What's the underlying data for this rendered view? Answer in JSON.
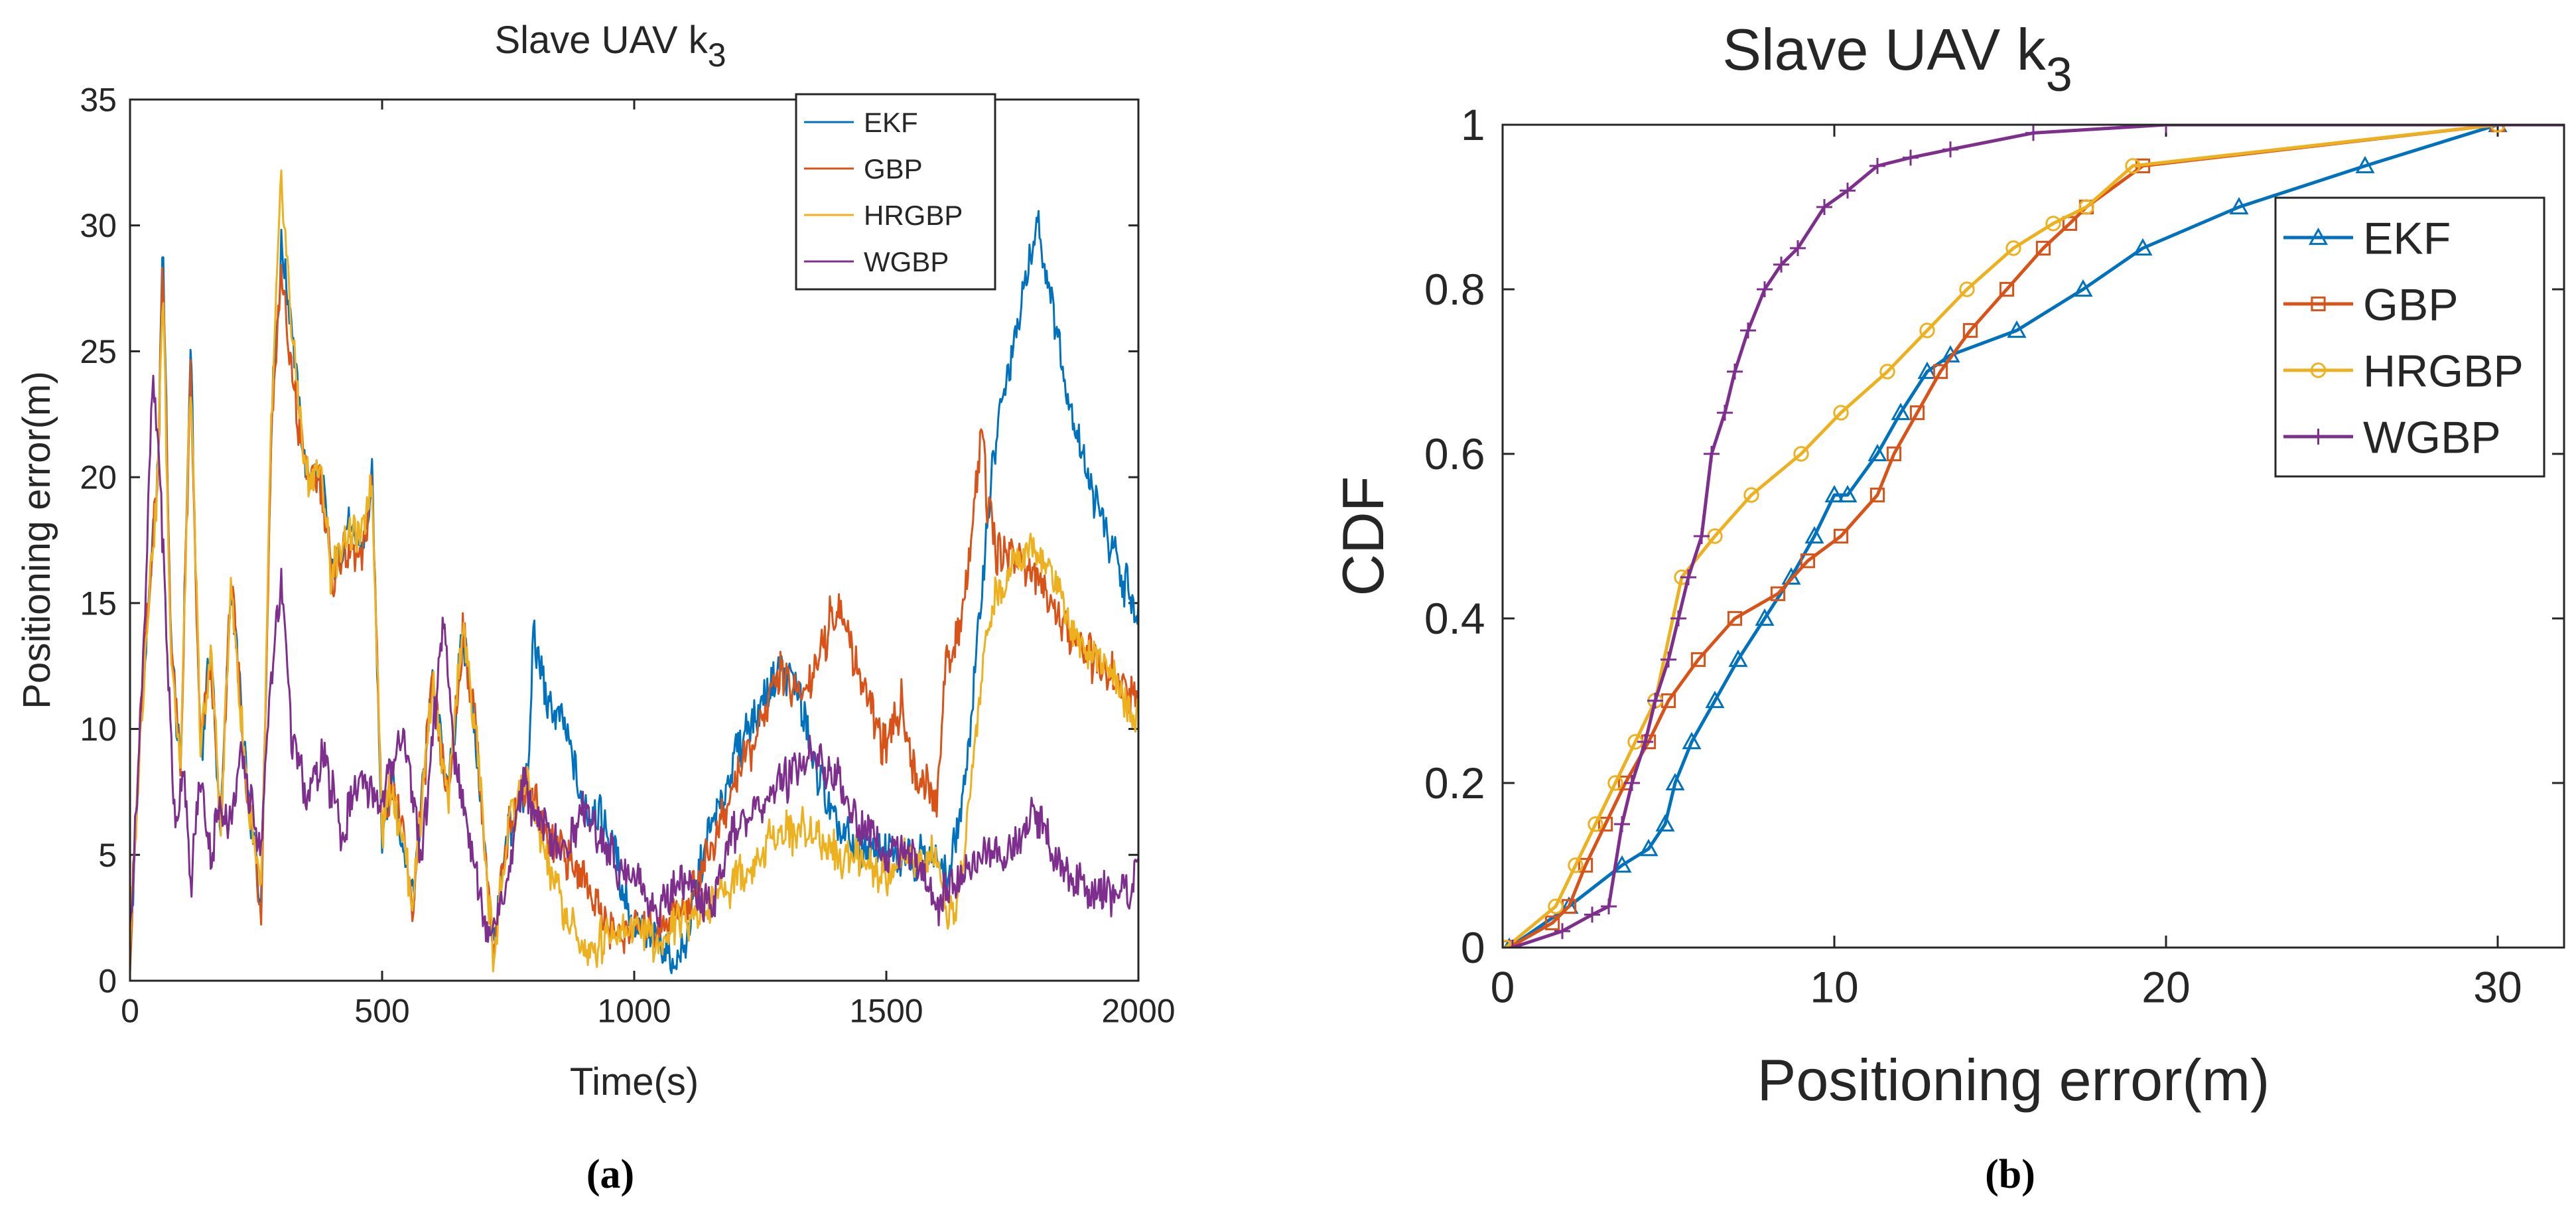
{
  "chart_data": [
    {
      "id": "a",
      "type": "line",
      "title": "Slave UAV k",
      "title_subscript": "3",
      "xlabel": "Time(s)",
      "ylabel": "Positioning error(m)",
      "xlim": [
        0,
        2000
      ],
      "ylim": [
        0,
        35
      ],
      "xticks": [
        0,
        500,
        1000,
        1500,
        2000
      ],
      "yticks": [
        0,
        5,
        10,
        15,
        20,
        25,
        30,
        35
      ],
      "grid": false,
      "legend_position": "top-right",
      "caption": "(a)",
      "series": [
        {
          "name": "EKF",
          "color": "#0072BD",
          "x": [
            0,
            20,
            40,
            55,
            65,
            80,
            100,
            120,
            140,
            160,
            180,
            200,
            230,
            260,
            280,
            300,
            320,
            350,
            380,
            400,
            430,
            460,
            480,
            500,
            520,
            560,
            600,
            630,
            660,
            690,
            720,
            750,
            790,
            800,
            830,
            860,
            900,
            950,
            1000,
            1050,
            1080,
            1100,
            1150,
            1200,
            1250,
            1290,
            1320,
            1350,
            1400,
            1450,
            1500,
            1550,
            1600,
            1620,
            1650,
            1680,
            1700,
            1720,
            1750,
            1780,
            1800,
            1830,
            1860,
            1900,
            1950,
            2000
          ],
          "y": [
            1,
            10,
            16,
            20,
            29.5,
            14,
            8,
            25,
            9,
            13,
            6,
            16,
            8,
            3,
            22,
            29,
            26,
            20,
            20,
            16,
            18,
            17,
            20,
            6,
            8,
            3,
            12,
            7,
            14,
            9,
            1,
            6,
            8,
            14,
            11,
            10,
            7,
            6,
            2,
            1.5,
            0.6,
            1.5,
            6,
            9,
            11,
            12.5,
            12,
            9,
            6,
            5,
            5,
            5,
            5,
            4,
            7,
            13,
            18,
            22,
            25,
            28,
            30,
            27,
            23,
            20,
            17,
            14.5
          ]
        },
        {
          "name": "GBP",
          "color": "#D95319",
          "x": [
            0,
            20,
            40,
            55,
            65,
            80,
            100,
            120,
            140,
            160,
            180,
            200,
            230,
            260,
            280,
            300,
            320,
            350,
            380,
            400,
            430,
            460,
            480,
            500,
            520,
            560,
            600,
            630,
            660,
            690,
            720,
            750,
            790,
            820,
            860,
            900,
            950,
            1000,
            1050,
            1100,
            1150,
            1200,
            1250,
            1290,
            1320,
            1350,
            1400,
            1420,
            1450,
            1500,
            1530,
            1560,
            1600,
            1620,
            1650,
            1680,
            1690,
            1700,
            1720,
            1750,
            1800,
            1850,
            1900,
            1950,
            2000
          ],
          "y": [
            1,
            10,
            16,
            20,
            29,
            14,
            8,
            24,
            9,
            13,
            6,
            16,
            8,
            3,
            22,
            28,
            24,
            20,
            20,
            16,
            17,
            17,
            20,
            6,
            8,
            3,
            12,
            7,
            14,
            9,
            1,
            6,
            8,
            6,
            5,
            4,
            2,
            2,
            2,
            3,
            5,
            8,
            10,
            12.5,
            11,
            12,
            15,
            14,
            12,
            9,
            11,
            8,
            7,
            13,
            14,
            20,
            22.5,
            19,
            17,
            17,
            16,
            14,
            13,
            12,
            11
          ]
        },
        {
          "name": "HRGBP",
          "color": "#EDB120",
          "x": [
            0,
            20,
            40,
            55,
            65,
            80,
            100,
            120,
            140,
            160,
            180,
            200,
            230,
            260,
            280,
            300,
            320,
            350,
            380,
            400,
            430,
            460,
            480,
            500,
            520,
            560,
            600,
            630,
            660,
            690,
            720,
            750,
            790,
            820,
            860,
            900,
            950,
            1000,
            1050,
            1100,
            1150,
            1200,
            1250,
            1300,
            1350,
            1400,
            1450,
            1500,
            1550,
            1600,
            1620,
            1650,
            1680,
            1700,
            1750,
            1800,
            1850,
            1900,
            1950,
            2000
          ],
          "y": [
            1,
            10,
            16,
            20,
            28,
            14,
            8,
            24,
            9,
            13,
            6,
            16,
            8,
            3,
            22,
            31.5,
            26,
            20,
            20,
            16,
            18,
            18,
            20,
            6,
            8,
            3,
            12,
            7,
            14,
            9,
            1,
            6,
            8,
            5,
            3,
            1,
            2,
            2,
            1.5,
            2.5,
            3,
            4,
            5,
            6,
            6,
            5,
            5,
            4,
            5,
            5,
            2,
            4,
            10,
            14,
            17,
            17,
            15,
            13,
            12,
            10.5
          ]
        },
        {
          "name": "WGBP",
          "color": "#7E2F8E",
          "x": [
            0,
            15,
            30,
            45,
            60,
            75,
            90,
            105,
            120,
            140,
            160,
            180,
            200,
            220,
            240,
            260,
            280,
            300,
            320,
            350,
            380,
            420,
            460,
            500,
            540,
            580,
            620,
            650,
            680,
            710,
            740,
            780,
            820,
            860,
            900,
            950,
            1000,
            1050,
            1100,
            1150,
            1200,
            1250,
            1300,
            1350,
            1400,
            1450,
            1500,
            1550,
            1600,
            1650,
            1700,
            1750,
            1790,
            1800,
            1830,
            1860,
            1900,
            1950,
            2000
          ],
          "y": [
            2,
            8,
            15,
            24,
            20,
            12,
            6,
            9,
            4,
            8,
            5,
            7,
            6,
            9,
            7,
            5,
            12,
            16,
            10,
            7,
            9,
            6,
            8,
            7,
            10,
            5,
            14,
            8,
            5,
            2,
            3,
            8,
            6,
            5,
            7,
            5,
            4,
            3,
            4,
            3,
            6,
            7,
            8,
            9,
            8,
            6,
            5,
            5,
            3,
            4,
            5,
            5,
            7,
            6.5,
            5,
            4,
            3.5,
            3.5,
            4
          ]
        }
      ]
    },
    {
      "id": "b",
      "type": "line",
      "title": "Slave UAV k",
      "title_subscript": "3",
      "xlabel": "Positioning error(m)",
      "ylabel": "CDF",
      "xlim": [
        0,
        32
      ],
      "ylim": [
        0,
        1
      ],
      "xticks": [
        0,
        10,
        20,
        30
      ],
      "yticks": [
        0,
        0.2,
        0.4,
        0.6,
        0.8,
        1
      ],
      "grid": false,
      "legend_position": "top-right",
      "caption": "(b)",
      "series": [
        {
          "name": "EKF",
          "color": "#0072BD",
          "marker": "triangle",
          "x": [
            0.2,
            2.0,
            3.6,
            4.4,
            4.9,
            5.2,
            5.7,
            6.4,
            7.1,
            7.9,
            8.7,
            9.4,
            10.0,
            10.4,
            11.3,
            12.0,
            12.8,
            13.5,
            15.5,
            17.5,
            19.3,
            22.2,
            26.0,
            30.0
          ],
          "y": [
            0,
            0.05,
            0.1,
            0.12,
            0.15,
            0.2,
            0.25,
            0.3,
            0.35,
            0.4,
            0.45,
            0.5,
            0.55,
            0.55,
            0.6,
            0.65,
            0.7,
            0.72,
            0.75,
            0.8,
            0.85,
            0.9,
            0.95,
            1
          ]
        },
        {
          "name": "GBP",
          "color": "#D95319",
          "marker": "square",
          "x": [
            0.2,
            1.5,
            2.0,
            2.5,
            3.1,
            3.7,
            4.4,
            5.0,
            5.9,
            7.0,
            8.3,
            9.2,
            10.2,
            11.3,
            11.8,
            12.5,
            13.2,
            14.1,
            15.2,
            16.3,
            17.1,
            17.6,
            19.3,
            30.0
          ],
          "y": [
            0,
            0.03,
            0.05,
            0.1,
            0.15,
            0.2,
            0.25,
            0.3,
            0.35,
            0.4,
            0.43,
            0.47,
            0.5,
            0.55,
            0.6,
            0.65,
            0.7,
            0.75,
            0.8,
            0.85,
            0.88,
            0.9,
            0.95,
            1
          ]
        },
        {
          "name": "HRGBP",
          "color": "#EDB120",
          "marker": "circle",
          "x": [
            0.1,
            1.6,
            2.2,
            2.8,
            3.4,
            4.0,
            4.6,
            5.4,
            6.4,
            7.5,
            9.0,
            10.2,
            11.6,
            12.8,
            14.0,
            15.4,
            16.6,
            17.6,
            19.0,
            30.0
          ],
          "y": [
            0,
            0.05,
            0.1,
            0.15,
            0.2,
            0.25,
            0.3,
            0.45,
            0.5,
            0.55,
            0.6,
            0.65,
            0.7,
            0.75,
            0.8,
            0.85,
            0.88,
            0.9,
            0.95,
            1
          ]
        },
        {
          "name": "WGBP",
          "color": "#7E2F8E",
          "marker": "plus",
          "x": [
            0.3,
            1.8,
            2.7,
            3.2,
            3.6,
            3.9,
            4.3,
            4.6,
            5.0,
            5.3,
            5.6,
            6.0,
            6.3,
            6.7,
            7.0,
            7.4,
            7.9,
            8.4,
            8.9,
            9.7,
            10.4,
            11.3,
            12.3,
            13.5,
            16.0,
            20.0,
            32.0
          ],
          "y": [
            0,
            0.02,
            0.04,
            0.05,
            0.15,
            0.2,
            0.25,
            0.3,
            0.35,
            0.4,
            0.45,
            0.5,
            0.6,
            0.65,
            0.7,
            0.75,
            0.8,
            0.83,
            0.85,
            0.9,
            0.92,
            0.95,
            0.96,
            0.97,
            0.99,
            1,
            1
          ]
        }
      ]
    }
  ]
}
